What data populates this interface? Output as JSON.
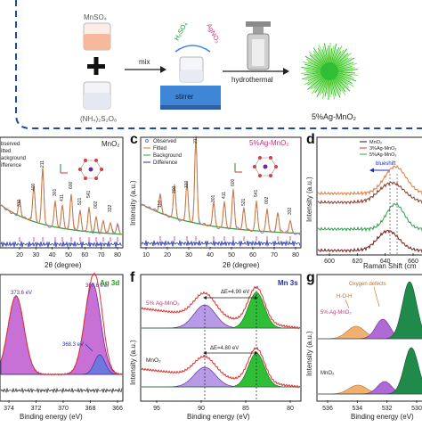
{
  "figure": {
    "panel_a": {
      "reagents": {
        "mnso4": "MnSO₄",
        "nh4s2o8": "(NH₄)₂S₂O₈",
        "h2so4": "H₂SO₄",
        "agno3": "AgNO₃"
      },
      "mix_label": "mix",
      "stirrer_label": "stirrer",
      "hydrothermal_label": "hydrothermal",
      "product_label": "5%Ag-MnO₂"
    },
    "panel_b": {
      "legend": [
        "Observed",
        "Fitted",
        "Background",
        "Difference"
      ],
      "legend_partial": [
        "bserved",
        "itted",
        "ackground",
        "ifference"
      ],
      "material": "MnO₂",
      "peaks": [
        "110",
        "200",
        "310",
        "400",
        "211",
        "301",
        "411",
        "600",
        "521",
        "541",
        "002",
        "332"
      ],
      "xticks": [
        "20",
        "30",
        "40",
        "50",
        "60",
        "70",
        "80"
      ],
      "xlabel": "2θ (degree)"
    },
    "panel_c": {
      "letter": "c",
      "legend": [
        "Observed",
        "Fitted",
        "Background",
        "Difference"
      ],
      "material": "5%Ag-MnO₂",
      "peaks": [
        "110",
        "200",
        "310",
        "400",
        "211",
        "301",
        "411",
        "600",
        "521",
        "541",
        "002",
        "332"
      ],
      "xticks": [
        "10",
        "20",
        "30",
        "40",
        "50",
        "60",
        "70",
        "80"
      ],
      "ylabel": "Intensity (a.u.)",
      "xlabel": "2θ (degree)"
    },
    "panel_d": {
      "letter": "d",
      "legend": [
        "MnO₂",
        "3%Ag-MnO₂",
        "5%Ag-MnO₂"
      ],
      "blueshift_label": "blueshift",
      "ylabel": "Intensity (a.u.)",
      "xticks": [
        "600",
        "620",
        "640",
        "660"
      ],
      "xlabel": "Raman Shift (cm"
    },
    "panel_e": {
      "title": "Ag 3d",
      "peak_labels": [
        "373.6 eV",
        "367.6 eV",
        "368.3 eV"
      ],
      "xticks": [
        "374",
        "372",
        "370",
        "368",
        "366"
      ],
      "xlabel": "Binding energy (eV)"
    },
    "panel_f": {
      "letter": "f",
      "title": "Mn 3s",
      "labels": [
        "5% Ag-MnO₂",
        "MnO₂"
      ],
      "delta_e": [
        "ΔE=4.90 eV",
        "ΔE=4.80 eV"
      ],
      "ylabel": "Intensity (a.u.)",
      "xticks": [
        "95",
        "90",
        "85",
        "80"
      ],
      "xlabel": "Binding energy (eV)"
    },
    "panel_g": {
      "letter": "g",
      "labels": [
        "5% Ag-MnO₂",
        "MnO₂",
        "H-O-H",
        "Oxygen defects"
      ],
      "ylabel": "Intensity (a.u.)",
      "xticks": [
        "536",
        "534",
        "532",
        "530"
      ],
      "xlabel": "Binding energy (eV)"
    },
    "colors": {
      "observed": "#6e7fd6",
      "fitted": "#d9762b",
      "background": "#2ca44a",
      "difference": "#1c2ea8",
      "peak_tick": "#dd4f8f",
      "ag_fill": "#c770d6",
      "green_fill": "#2fbe36",
      "lavender_fill": "#b79be6",
      "stirrer": "#3f87d6",
      "dashed_border": "#1f4aa3"
    }
  }
}
